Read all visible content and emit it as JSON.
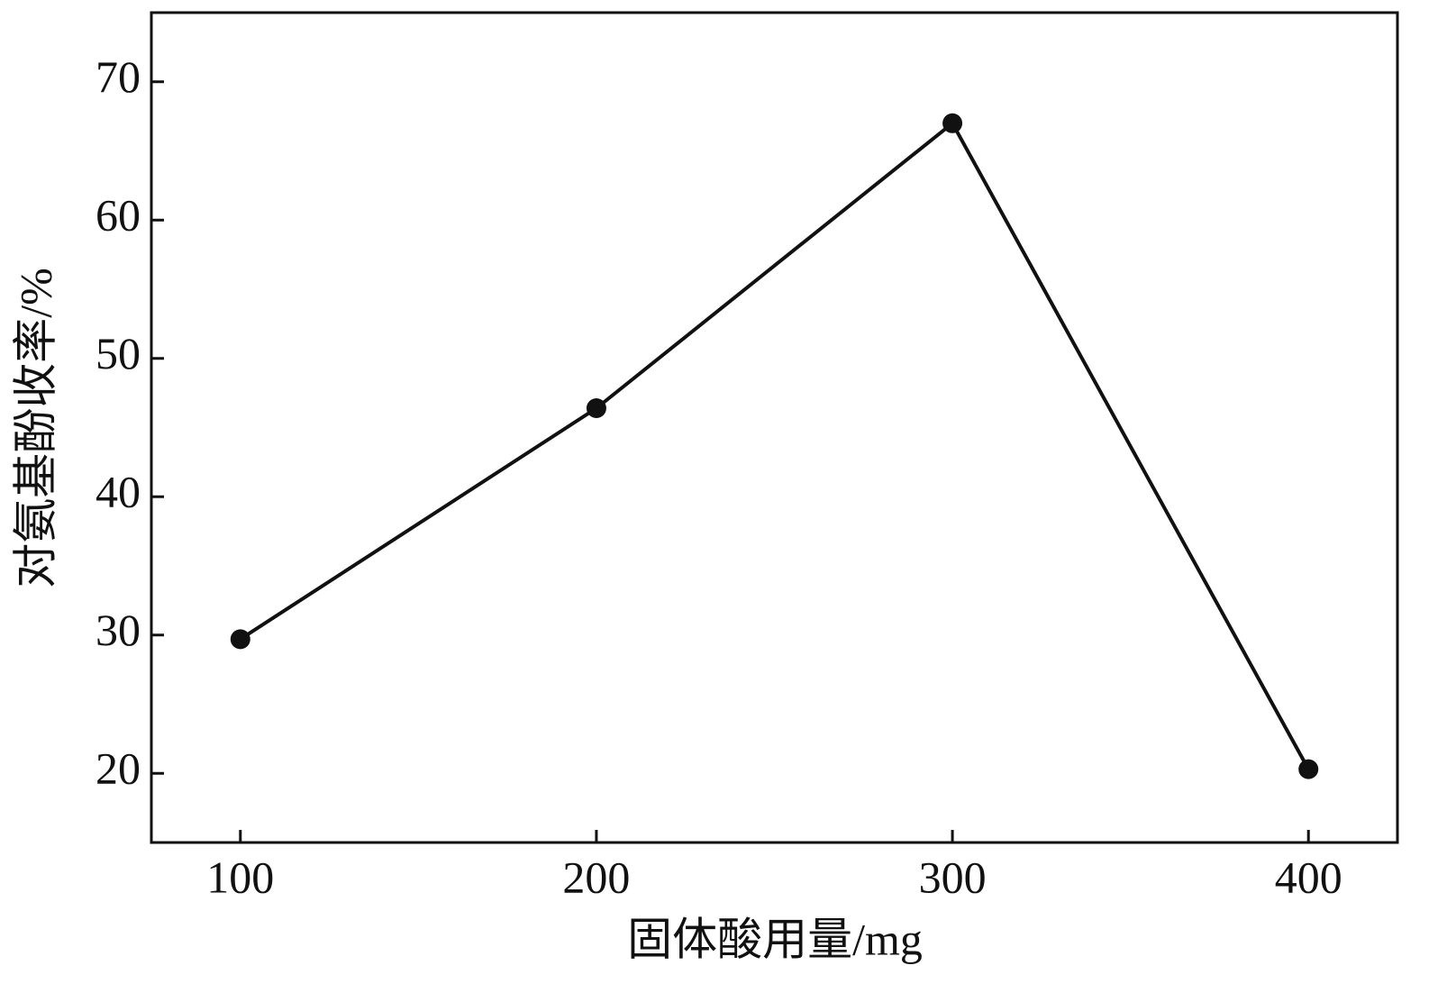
{
  "chart_data": {
    "type": "line",
    "x_label": "固体酸用量/mg",
    "y_label": "对氨基酚收率/%",
    "x": [
      100,
      200,
      300,
      400
    ],
    "series": [
      {
        "color": "#111111",
        "values": [
          29.7,
          46.4,
          67.0,
          20.3
        ]
      }
    ],
    "xlim": [
      75,
      425
    ],
    "xticks": [
      100,
      200,
      300,
      400
    ],
    "ylim": [
      15,
      75
    ],
    "yticks": [
      20,
      30,
      40,
      50,
      60,
      70
    ],
    "grid": false
  }
}
